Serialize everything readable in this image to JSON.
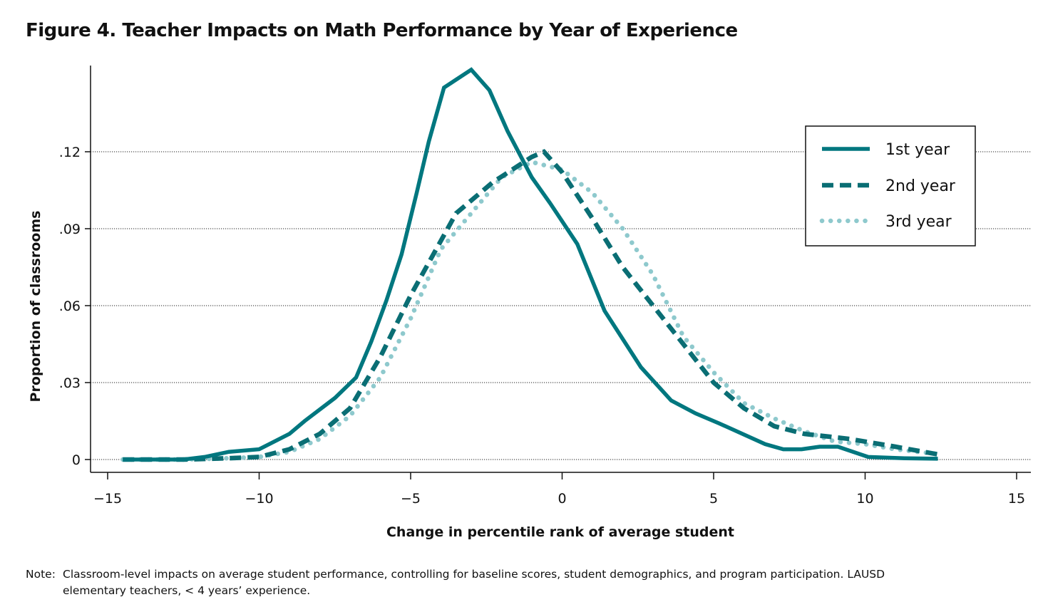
{
  "title": "Figure 4. Teacher Impacts on Math Performance by Year of Experience",
  "note": {
    "label": "Note:",
    "line1": "Classroom-level impacts on average student performance, controlling for baseline scores, student demographics, and program participation. LAUSD",
    "line2": "elementary teachers, < 4 years’ experience."
  },
  "chart_data": {
    "type": "line",
    "title": "Figure 4. Teacher Impacts on Math Performance by Year of Experience",
    "xlabel": "Change in percentile rank of average student",
    "ylabel": "Proportion of classrooms",
    "xlim": [
      -15,
      15
    ],
    "ylim": [
      -0.004,
      0.152
    ],
    "x_ticks": [
      -15,
      -10,
      -5,
      0,
      5,
      10,
      15
    ],
    "x_tick_labels": [
      "−15",
      "−10",
      "−5",
      "0",
      "5",
      "10",
      "15"
    ],
    "y_ticks": [
      0,
      0.03,
      0.06,
      0.09,
      0.12
    ],
    "y_tick_labels": [
      "0",
      ".03",
      ".06",
      ".09",
      ".12"
    ],
    "grid": "horizontal dotted",
    "legend_position": "top-right",
    "colors": {
      "first": "#00777f",
      "second": "#0a6e74",
      "third": "#8ec9cd"
    },
    "series": [
      {
        "name": "1st year",
        "style": "solid",
        "points": [
          [
            -14.5,
            0
          ],
          [
            -12.5,
            0
          ],
          [
            -11.8,
            0.001
          ],
          [
            -11,
            0.003
          ],
          [
            -10,
            0.004
          ],
          [
            -9,
            0.01
          ],
          [
            -8.5,
            0.015
          ],
          [
            -7.5,
            0.024
          ],
          [
            -6.8,
            0.032
          ],
          [
            -6.3,
            0.046
          ],
          [
            -5.8,
            0.062
          ],
          [
            -5.3,
            0.08
          ],
          [
            -4.8,
            0.104
          ],
          [
            -4.4,
            0.124
          ],
          [
            -3.9,
            0.145
          ],
          [
            -3,
            0.152
          ],
          [
            -2.4,
            0.144
          ],
          [
            -1.8,
            0.128
          ],
          [
            -1,
            0.11
          ],
          [
            -0.4,
            0.1
          ],
          [
            0.5,
            0.084
          ],
          [
            1.4,
            0.058
          ],
          [
            2.6,
            0.036
          ],
          [
            3.6,
            0.023
          ],
          [
            4.4,
            0.018
          ],
          [
            5.2,
            0.014
          ],
          [
            6.7,
            0.006
          ],
          [
            7.3,
            0.004
          ],
          [
            7.9,
            0.004
          ],
          [
            8.5,
            0.005
          ],
          [
            9.1,
            0.005
          ],
          [
            10.1,
            0.001
          ],
          [
            11.3,
            0.0005
          ],
          [
            12.4,
            0.0003
          ]
        ]
      },
      {
        "name": "2nd year",
        "style": "dashed",
        "points": [
          [
            -14.5,
            0
          ],
          [
            -12.5,
            0
          ],
          [
            -11,
            0.0005
          ],
          [
            -10,
            0.001
          ],
          [
            -9,
            0.004
          ],
          [
            -8,
            0.01
          ],
          [
            -7,
            0.02
          ],
          [
            -6,
            0.04
          ],
          [
            -5,
            0.064
          ],
          [
            -3.5,
            0.096
          ],
          [
            -2.3,
            0.108
          ],
          [
            -1,
            0.118
          ],
          [
            -0.6,
            0.12
          ],
          [
            0,
            0.112
          ],
          [
            1,
            0.094
          ],
          [
            2,
            0.075
          ],
          [
            3,
            0.06
          ],
          [
            4,
            0.045
          ],
          [
            5,
            0.03
          ],
          [
            6,
            0.02
          ],
          [
            7,
            0.013
          ],
          [
            8,
            0.01
          ],
          [
            9.5,
            0.008
          ],
          [
            11,
            0.005
          ],
          [
            12.4,
            0.002
          ]
        ]
      },
      {
        "name": "3rd year",
        "style": "dotted",
        "points": [
          [
            -14.5,
            0
          ],
          [
            -12.5,
            0
          ],
          [
            -11,
            0.0005
          ],
          [
            -10,
            0.001
          ],
          [
            -9,
            0.003
          ],
          [
            -8,
            0.008
          ],
          [
            -7,
            0.017
          ],
          [
            -6,
            0.032
          ],
          [
            -5,
            0.055
          ],
          [
            -4,
            0.082
          ],
          [
            -3,
            0.096
          ],
          [
            -2,
            0.11
          ],
          [
            -1,
            0.116
          ],
          [
            0,
            0.113
          ],
          [
            1,
            0.104
          ],
          [
            2,
            0.09
          ],
          [
            3,
            0.072
          ],
          [
            4,
            0.048
          ],
          [
            5,
            0.034
          ],
          [
            6,
            0.022
          ],
          [
            7,
            0.016
          ],
          [
            8,
            0.011
          ],
          [
            9,
            0.007
          ],
          [
            10,
            0.006
          ],
          [
            11,
            0.004
          ],
          [
            12.5,
            0.002
          ]
        ]
      }
    ]
  }
}
